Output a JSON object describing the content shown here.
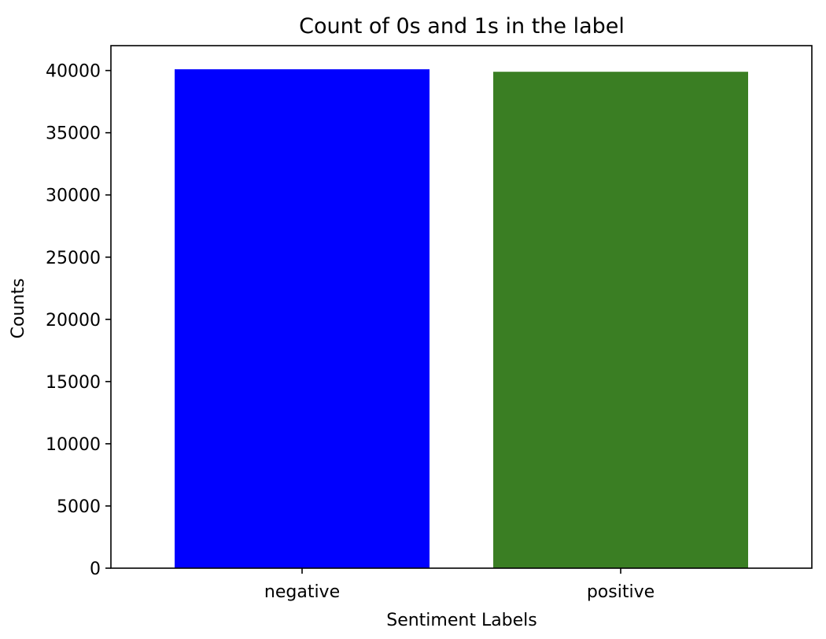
{
  "chart_data": {
    "type": "bar",
    "title": "Count of 0s and 1s in the label",
    "xlabel": "Sentiment Labels",
    "ylabel": "Counts",
    "categories": [
      "negative",
      "positive"
    ],
    "values": [
      40100,
      39900
    ],
    "colors": [
      "#0000ff",
      "#3a7e23"
    ],
    "ylim": [
      0,
      42000
    ],
    "yticks": [
      0,
      5000,
      10000,
      15000,
      20000,
      25000,
      30000,
      35000,
      40000
    ],
    "ytick_labels": [
      "0",
      "5000",
      "10000",
      "15000",
      "20000",
      "25000",
      "30000",
      "35000",
      "40000"
    ],
    "grid": false,
    "legend": "none"
  }
}
